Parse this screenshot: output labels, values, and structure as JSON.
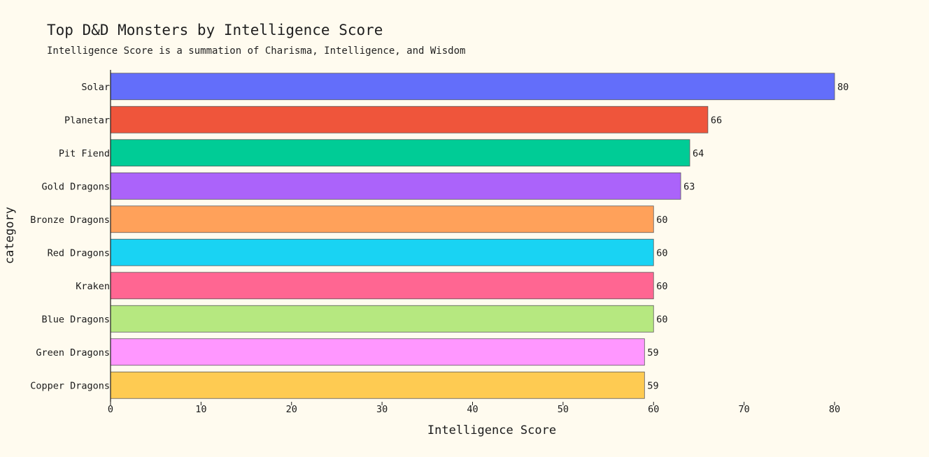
{
  "chart_data": {
    "type": "bar",
    "orientation": "horizontal",
    "title": "Top D&D Monsters by Intelligence Score",
    "subtitle": "Intelligence Score is a summation of Charisma, Intelligence, and Wisdom",
    "xlabel": "Intelligence Score",
    "ylabel": "category",
    "xlim": [
      0,
      80
    ],
    "xticks": [
      0,
      10,
      20,
      30,
      40,
      50,
      60,
      70,
      80
    ],
    "grid": false,
    "legend": "none",
    "categories": [
      "Solar",
      "Planetar",
      "Pit Fiend",
      "Gold Dragons",
      "Bronze Dragons",
      "Red Dragons",
      "Kraken",
      "Blue Dragons",
      "Green Dragons",
      "Copper Dragons"
    ],
    "values": [
      80,
      66,
      64,
      63,
      60,
      60,
      60,
      60,
      59,
      59
    ],
    "colors": [
      "#636efa",
      "#ef553b",
      "#00cc96",
      "#ab63fa",
      "#ffa15a",
      "#19d3f3",
      "#ff6692",
      "#b6e880",
      "#ff97ff",
      "#fecb52"
    ]
  }
}
